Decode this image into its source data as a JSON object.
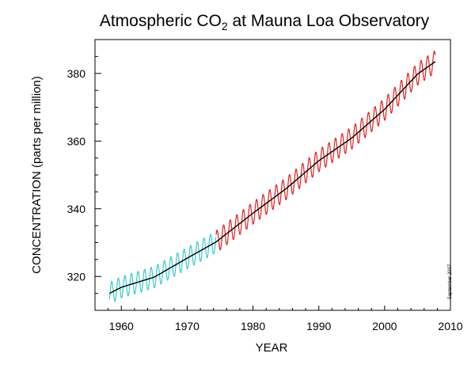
{
  "chart_data": {
    "type": "line",
    "title": {
      "main": "Atmospheric CO",
      "subscript": "2",
      "suffix": " at Mauna Loa Observatory"
    },
    "xlabel": "YEAR",
    "ylabel": "CONCENTRATION (parts per million)",
    "annotation": "September 2007",
    "xlim": [
      1956,
      2010
    ],
    "ylim": [
      310,
      390
    ],
    "xticks": [
      1960,
      1970,
      1980,
      1990,
      2000,
      2010
    ],
    "yticks": [
      320,
      340,
      360,
      380
    ],
    "grid": false,
    "legend": "none",
    "series": [
      {
        "role": "monthly-early",
        "color": "#3cc8d2",
        "style": "seasonal",
        "x_range": [
          1958.2,
          1974.4
        ],
        "amplitude_ppm": 3.2,
        "trend_points": [
          [
            1958.2,
            315.0
          ],
          [
            1960,
            316.8
          ],
          [
            1965,
            319.8
          ],
          [
            1970,
            325.4
          ],
          [
            1974.4,
            330.2
          ]
        ]
      },
      {
        "role": "monthly-late",
        "color": "#e02020",
        "style": "seasonal",
        "x_range": [
          1974.4,
          2007.7
        ],
        "amplitude_ppm": 3.3,
        "trend_points": [
          [
            1974.4,
            330.2
          ],
          [
            1980,
            338.7
          ],
          [
            1985,
            345.9
          ],
          [
            1990,
            354.2
          ],
          [
            1995,
            360.9
          ],
          [
            2000,
            369.4
          ],
          [
            2005,
            379.8
          ],
          [
            2007.7,
            383.5
          ]
        ]
      },
      {
        "role": "annual-trend",
        "color": "#000000",
        "style": "smooth",
        "trend_points": [
          [
            1958.2,
            315.0
          ],
          [
            1960,
            316.8
          ],
          [
            1965,
            319.8
          ],
          [
            1970,
            325.4
          ],
          [
            1974.4,
            330.2
          ],
          [
            1980,
            338.7
          ],
          [
            1985,
            345.9
          ],
          [
            1990,
            354.2
          ],
          [
            1995,
            360.9
          ],
          [
            2000,
            369.4
          ],
          [
            2005,
            379.8
          ],
          [
            2007.7,
            383.5
          ]
        ]
      }
    ]
  }
}
